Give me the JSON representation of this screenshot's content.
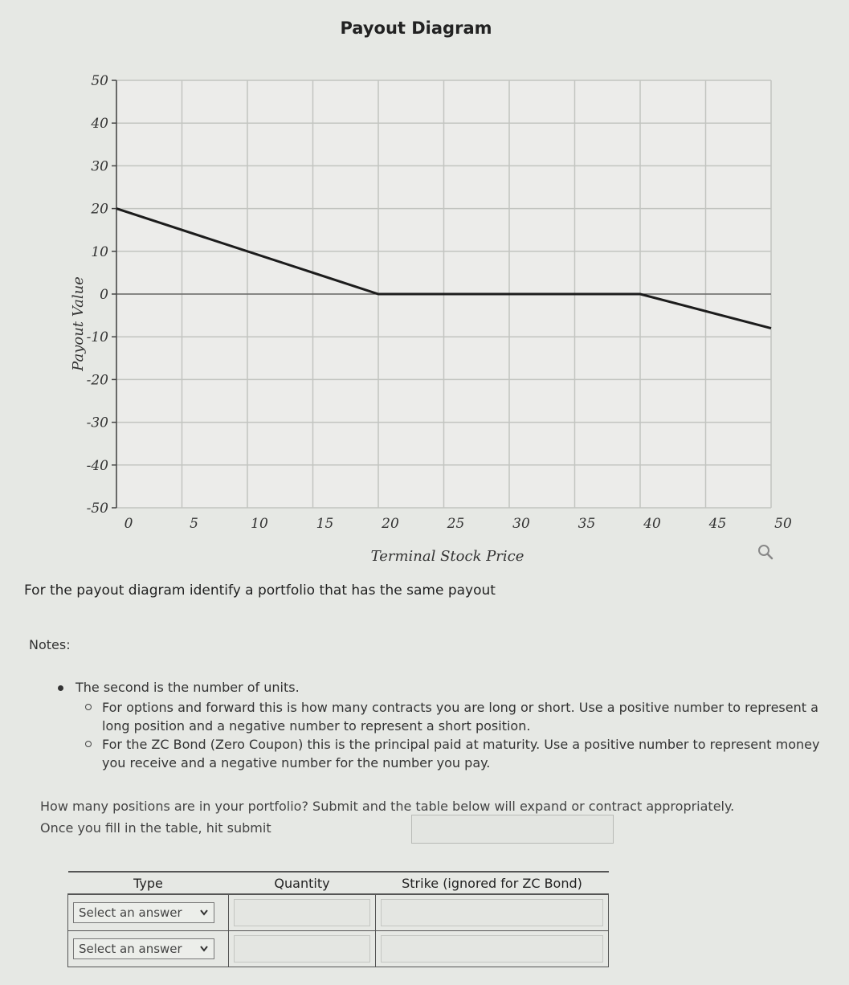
{
  "chart_data": {
    "type": "line",
    "title": "Payout Diagram",
    "xlabel": "Terminal Stock Price",
    "ylabel": "Payout Value",
    "xlim": [
      0,
      50
    ],
    "ylim": [
      -50,
      50
    ],
    "x_ticks": [
      "0",
      "5",
      "10",
      "15",
      "20",
      "25",
      "30",
      "35",
      "40",
      "45",
      "50"
    ],
    "y_ticks": [
      "50",
      "40",
      "30",
      "20",
      "10",
      "0",
      "-10",
      "-20",
      "-30",
      "-40",
      "-50"
    ],
    "grid": true,
    "series": [
      {
        "x": [
          0,
          20,
          40,
          50
        ],
        "y": [
          20,
          0,
          0,
          -8
        ]
      }
    ]
  },
  "prompt": "For the payout diagram identify a portfolio that has the same payout",
  "notes": {
    "label": "Notes:",
    "bullet": "The second is the number of units.",
    "sub_items": [
      "For options and forward this is how many contracts you are long or short. Use a positive number to represent a long position and a negative number to represent a short position.",
      "For the ZC Bond (Zero Coupon) this is the principal paid at maturity.  Use a positive number to represent money you receive and a negative number for the number you pay."
    ]
  },
  "question": "How many positions are in your portfolio? Submit and the table below will expand or contract appropriately. Once you fill in the table, hit submit",
  "table": {
    "headers": [
      "Type",
      "Quantity",
      "Strike (ignored for ZC Bond)"
    ],
    "rows": [
      {
        "type": "Select an answer"
      },
      {
        "type": "Select an answer"
      }
    ]
  },
  "icons": {
    "zoom": "zoom-icon",
    "dropdown": "chevron-down-icon"
  }
}
